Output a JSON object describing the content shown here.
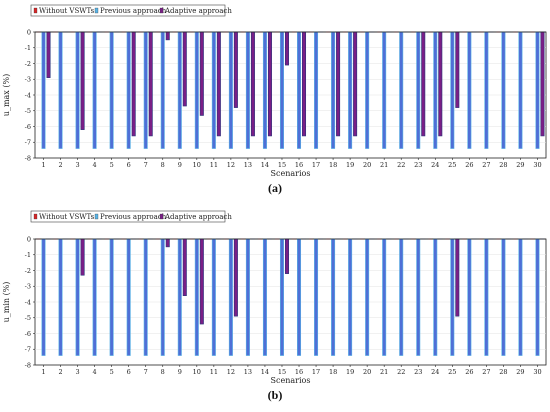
{
  "legend": [
    "Without VSWTs",
    "Previous approach",
    "Adaptive approach"
  ],
  "colors": {
    "without": "#d62728",
    "previous": "#5ab4e6",
    "previous_dark": "#4f6fd6",
    "adaptive": "#7a1f86",
    "adaptive_dark": "#27327a"
  },
  "chart_data": [
    {
      "type": "bar",
      "caption": "(a)",
      "xlabel": "Scenarios",
      "ylabel": "u_max (%)",
      "ylim": [
        -8,
        0
      ],
      "yticks": [
        0,
        -1,
        -2,
        -3,
        -4,
        -5,
        -6,
        -7,
        -8
      ],
      "categories": [
        1,
        2,
        3,
        4,
        5,
        6,
        7,
        8,
        9,
        10,
        11,
        12,
        13,
        14,
        15,
        16,
        17,
        18,
        19,
        20,
        21,
        22,
        23,
        24,
        25,
        26,
        27,
        28,
        29,
        30
      ],
      "series": [
        {
          "name": "Without VSWTs",
          "values": [
            0,
            0,
            0,
            0,
            0,
            0,
            0,
            0,
            0,
            0,
            0,
            0,
            0,
            0,
            0,
            0,
            0,
            0,
            0,
            0,
            0,
            0,
            0,
            0,
            0,
            0,
            0,
            0,
            0,
            0
          ]
        },
        {
          "name": "Previous approach",
          "values": [
            -7.4,
            -7.4,
            -7.4,
            -7.4,
            -7.4,
            -7.4,
            -7.4,
            -7.4,
            -7.4,
            -7.4,
            -7.4,
            -7.4,
            -7.4,
            -7.4,
            -7.4,
            -7.4,
            -7.4,
            -7.4,
            -7.4,
            -7.4,
            -7.4,
            -7.4,
            -7.4,
            -7.4,
            -7.4,
            -7.4,
            -7.4,
            -7.4,
            -7.4,
            -7.4
          ]
        },
        {
          "name": "Adaptive approach",
          "values": [
            -2.9,
            0,
            -6.2,
            0,
            0,
            -6.6,
            -6.6,
            -0.5,
            -4.7,
            -5.3,
            -6.6,
            -4.8,
            -6.6,
            -6.6,
            -2.1,
            -6.6,
            0,
            -6.6,
            -6.6,
            0,
            0,
            0,
            -6.6,
            -6.6,
            -4.8,
            0,
            0,
            0,
            0,
            -6.6
          ]
        }
      ]
    },
    {
      "type": "bar",
      "caption": "(b)",
      "xlabel": "Scenarios",
      "ylabel": "u_min (%)",
      "ylim": [
        -8,
        0
      ],
      "yticks": [
        0,
        -1,
        -2,
        -3,
        -4,
        -5,
        -6,
        -7,
        -8
      ],
      "categories": [
        1,
        2,
        3,
        4,
        5,
        6,
        7,
        8,
        9,
        10,
        11,
        12,
        13,
        14,
        15,
        16,
        17,
        18,
        19,
        20,
        21,
        22,
        23,
        24,
        25,
        26,
        27,
        28,
        29,
        30
      ],
      "series": [
        {
          "name": "Without VSWTs",
          "values": [
            0,
            0,
            0,
            0,
            0,
            0,
            0,
            0,
            0,
            0,
            0,
            0,
            0,
            0,
            0,
            0,
            0,
            0,
            0,
            0,
            0,
            0,
            0,
            0,
            0,
            0,
            0,
            0,
            0,
            0
          ]
        },
        {
          "name": "Previous approach",
          "values": [
            -7.4,
            -7.4,
            -7.4,
            -7.4,
            -7.4,
            -7.4,
            -7.4,
            -7.4,
            -7.4,
            -7.4,
            -7.4,
            -7.4,
            -7.4,
            -7.4,
            -7.4,
            -7.4,
            -7.4,
            -7.4,
            -7.4,
            -7.4,
            -7.4,
            -7.4,
            -7.4,
            -7.4,
            -7.4,
            -7.4,
            -7.4,
            -7.4,
            -7.4,
            -7.4
          ]
        },
        {
          "name": "Adaptive approach",
          "values": [
            0,
            0,
            -2.3,
            0,
            0,
            0,
            0,
            -0.5,
            -3.6,
            -5.4,
            0,
            -4.9,
            0,
            0,
            -2.2,
            0,
            0,
            0,
            0,
            0,
            0,
            0,
            0,
            0,
            -4.9,
            0,
            0,
            0,
            0,
            0
          ]
        }
      ]
    }
  ]
}
